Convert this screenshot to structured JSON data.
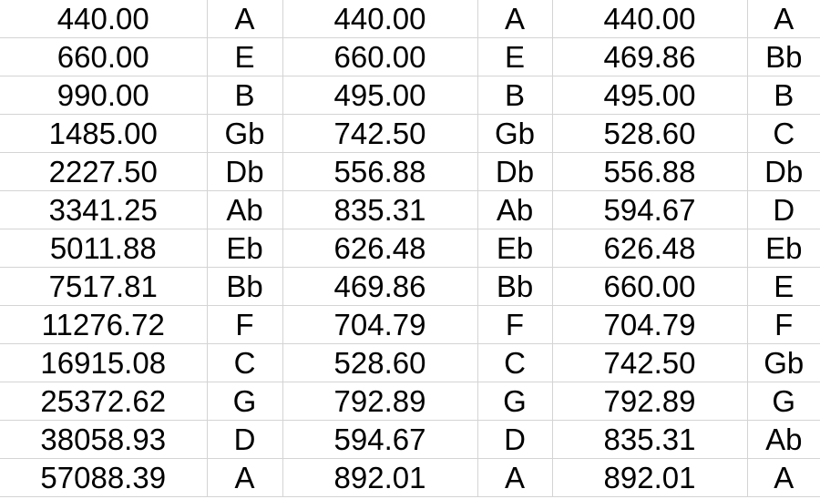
{
  "rows": [
    [
      "440.00",
      "A",
      "440.00",
      "A",
      "440.00",
      "A"
    ],
    [
      "660.00",
      "E",
      "660.00",
      "E",
      "469.86",
      "Bb"
    ],
    [
      "990.00",
      "B",
      "495.00",
      "B",
      "495.00",
      "B"
    ],
    [
      "1485.00",
      "Gb",
      "742.50",
      "Gb",
      "528.60",
      "C"
    ],
    [
      "2227.50",
      "Db",
      "556.88",
      "Db",
      "556.88",
      "Db"
    ],
    [
      "3341.25",
      "Ab",
      "835.31",
      "Ab",
      "594.67",
      "D"
    ],
    [
      "5011.88",
      "Eb",
      "626.48",
      "Eb",
      "626.48",
      "Eb"
    ],
    [
      "7517.81",
      "Bb",
      "469.86",
      "Bb",
      "660.00",
      "E"
    ],
    [
      "11276.72",
      "F",
      "704.79",
      "F",
      "704.79",
      "F"
    ],
    [
      "16915.08",
      "C",
      "528.60",
      "C",
      "742.50",
      "Gb"
    ],
    [
      "25372.62",
      "G",
      "792.89",
      "G",
      "792.89",
      "G"
    ],
    [
      "38058.93",
      "D",
      "594.67",
      "D",
      "835.31",
      "Ab"
    ],
    [
      "57088.39",
      "A",
      "892.01",
      "A",
      "892.01",
      "A"
    ]
  ]
}
